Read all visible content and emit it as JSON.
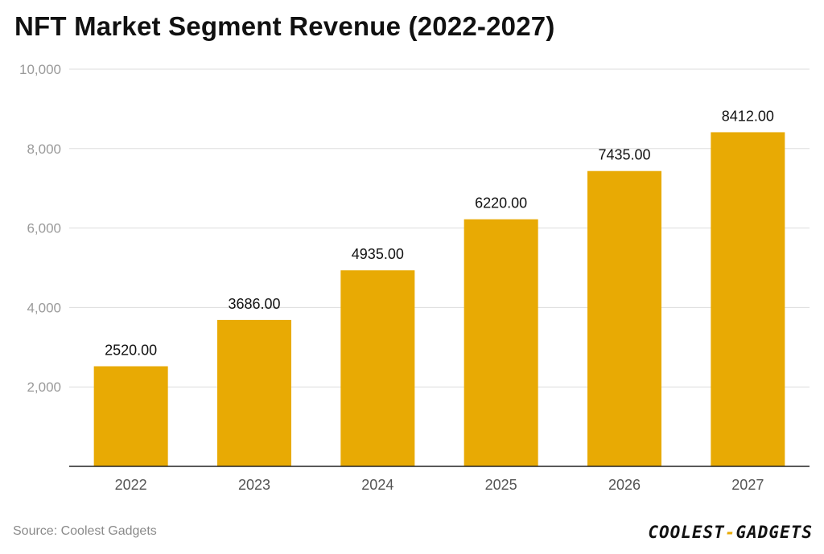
{
  "colors": {
    "bar": "#e8aa04",
    "grid": "#dddddd",
    "axis": "#222222"
  },
  "chart_data": {
    "type": "bar",
    "title": "NFT Market Segment Revenue (2022-2027)",
    "categories": [
      "2022",
      "2023",
      "2024",
      "2025",
      "2026",
      "2027"
    ],
    "values": [
      2520,
      3686,
      4935,
      6220,
      7435,
      8412
    ],
    "data_labels": [
      "2520.00",
      "3686.00",
      "4935.00",
      "6220.00",
      "7435.00",
      "8412.00"
    ],
    "ylim": [
      0,
      10000
    ],
    "yticks": [
      2000,
      4000,
      6000,
      8000,
      10000
    ],
    "ytick_labels": [
      "2,000",
      "4,000",
      "6,000",
      "8,000",
      "10,000"
    ],
    "xlabel": "",
    "ylabel": "",
    "grid": true
  },
  "footer": {
    "source": "Source: Coolest Gadgets",
    "brand_part1": "COOLEST",
    "brand_sep": "-",
    "brand_part2": "GADGETS"
  }
}
